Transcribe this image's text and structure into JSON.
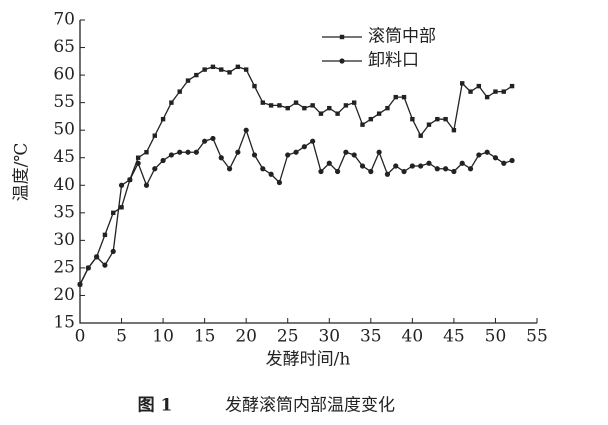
{
  "chart_data": {
    "type": "line",
    "x_label": "发酵时间/h",
    "y_label": "温度/℃",
    "caption": {
      "figure": "图 1",
      "text": "发酵滚筒内部温度变化"
    },
    "x": [
      0,
      1,
      2,
      3,
      4,
      5,
      6,
      7,
      8,
      9,
      10,
      11,
      12,
      13,
      14,
      15,
      16,
      17,
      18,
      19,
      20,
      21,
      22,
      23,
      24,
      25,
      26,
      27,
      28,
      29,
      30,
      31,
      32,
      33,
      34,
      35,
      36,
      37,
      38,
      39,
      40,
      41,
      42,
      43,
      44,
      45,
      46,
      47,
      48,
      49,
      50,
      51,
      52
    ],
    "series": [
      {
        "name": "滚筒中部",
        "color": "#222222",
        "marker": "square",
        "values": [
          22,
          25,
          27,
          31,
          35,
          36,
          41,
          45,
          46,
          49,
          52,
          55,
          57,
          59,
          60,
          61,
          61.5,
          61,
          60.5,
          61.5,
          61,
          58,
          55,
          54.5,
          54.5,
          54,
          55,
          54,
          54.5,
          53,
          54,
          53,
          54.5,
          55,
          51,
          52,
          53,
          54,
          56,
          56,
          52,
          49,
          51,
          52,
          52,
          50,
          58.5,
          57,
          58,
          56,
          57,
          57,
          58
        ]
      },
      {
        "name": "卸料口",
        "color": "#222222",
        "marker": "circle",
        "values": [
          22,
          25,
          27,
          25.5,
          28,
          40,
          41,
          44,
          40,
          43,
          44.5,
          45.5,
          46,
          46,
          46,
          48,
          48.5,
          45,
          43,
          46,
          50,
          45.5,
          43,
          42,
          40.5,
          45.5,
          46,
          47,
          48,
          42.5,
          44,
          42.5,
          46,
          45.5,
          43.5,
          42.5,
          46,
          42,
          43.5,
          42.5,
          43.5,
          43.5,
          44,
          43,
          43,
          42.5,
          44,
          43,
          45.5,
          46,
          45,
          44,
          44.5
        ]
      }
    ],
    "xlim": [
      0,
      55
    ],
    "xticks": [
      0,
      5,
      10,
      15,
      20,
      25,
      30,
      35,
      40,
      45,
      50,
      55
    ],
    "ylim": [
      15,
      70
    ],
    "yticks": [
      15,
      20,
      25,
      30,
      35,
      40,
      45,
      50,
      55,
      60,
      65,
      70
    ],
    "grid": false
  }
}
